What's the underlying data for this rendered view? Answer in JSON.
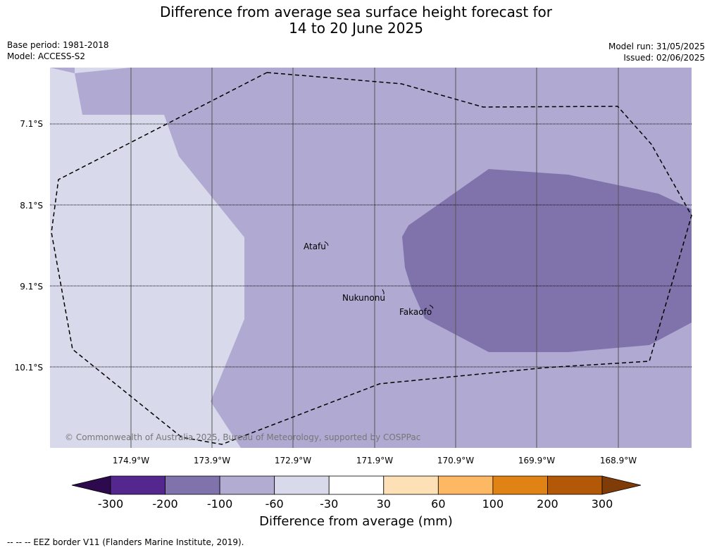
{
  "title_line1": "Difference from average sea surface height forecast for",
  "title_line2": "14 to 20 June 2025",
  "base_period": "Base period: 1981-2018",
  "model": "Model: ACCESS-S2",
  "model_run": "Model run: 31/05/2025",
  "issued": "Issued: 02/06/2025",
  "copyright": "© Commonwealth of Australia 2025, Bureau of Meteorology, supported by COSPPac",
  "places": {
    "atafu": "Atafu",
    "nukunonu": "Nukunonu",
    "fakaofo": "Fakaofo"
  },
  "lat_labels": [
    "7.1°S",
    "8.1°S",
    "9.1°S",
    "10.1°S"
  ],
  "lon_labels": [
    "174.9°W",
    "173.9°W",
    "172.9°W",
    "171.9°W",
    "170.9°W",
    "169.9°W",
    "168.9°W"
  ],
  "colorbar": {
    "title": "Difference from average (mm)",
    "ticks": [
      "-300",
      "-200",
      "-100",
      "-60",
      "-30",
      "30",
      "60",
      "100",
      "200",
      "300"
    ],
    "colors": [
      "#2d0a4e",
      "#54278f",
      "#8073ac",
      "#b2abd2",
      "#d8daeb",
      "#ffffff",
      "#fee0b6",
      "#fdb863",
      "#e08214",
      "#b35806",
      "#7f3b08"
    ]
  },
  "footnote": "-- -- -- EEZ border V11 (Flanders Marine Institute, 2019).",
  "colors": {
    "light": "#d8daeb",
    "medium": "#b0a9d1",
    "dark": "#8073ac"
  }
}
